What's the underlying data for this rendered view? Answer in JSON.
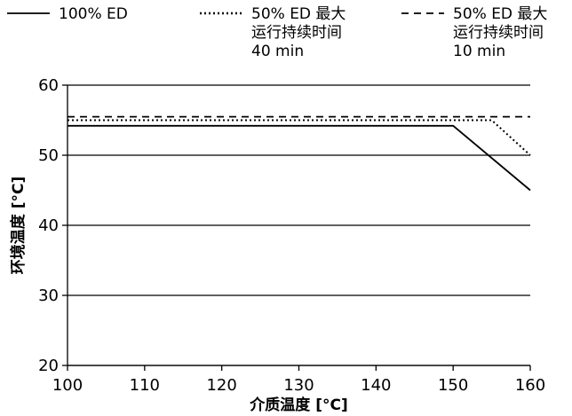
{
  "chart_data": {
    "type": "line",
    "xlabel": "介质温度 [°C]",
    "ylabel": "环境温度 [°C]",
    "xlim": [
      100,
      160
    ],
    "ylim": [
      20,
      60
    ],
    "xticks": [
      "100",
      "110",
      "120",
      "130",
      "140",
      "150",
      "160"
    ],
    "yticks": [
      "20",
      "30",
      "40",
      "50",
      "60"
    ],
    "grid": "horizontal",
    "legend_position": "top",
    "series": [
      {
        "name": "100% ED",
        "legend_lines": [
          "100% ED"
        ],
        "style": "solid",
        "color": "#000000",
        "points": [
          [
            100,
            54.2
          ],
          [
            150,
            54.2
          ],
          [
            160,
            45
          ]
        ]
      },
      {
        "name": "50% ED 最大运行持续时间 40 min",
        "legend_lines": [
          "50% ED 最大",
          "运行持续时间",
          "40 min"
        ],
        "style": "dotted",
        "color": "#000000",
        "points": [
          [
            100,
            55
          ],
          [
            155,
            55
          ],
          [
            160,
            50
          ]
        ]
      },
      {
        "name": "50% ED 最大运行持续时间 10 min",
        "legend_lines": [
          "50% ED 最大",
          "运行持续时间",
          "10 min"
        ],
        "style": "dashed",
        "color": "#000000",
        "points": [
          [
            100,
            55.5
          ],
          [
            160,
            55.5
          ]
        ]
      }
    ]
  }
}
